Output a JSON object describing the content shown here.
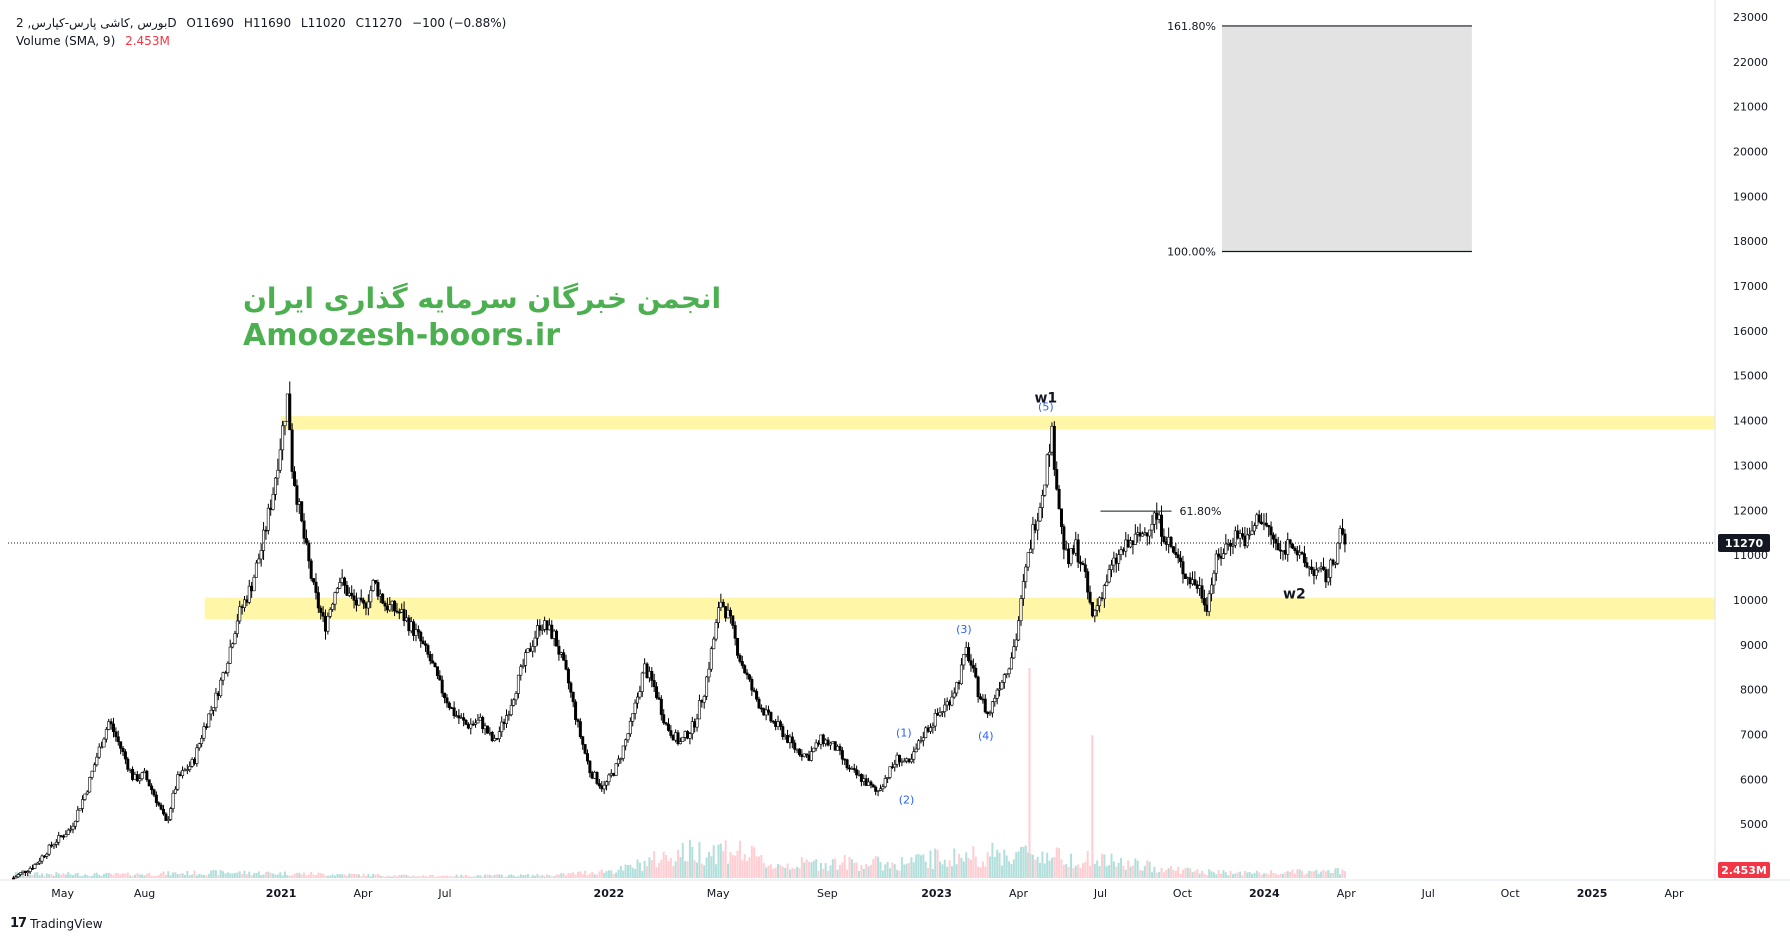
{
  "header": {
    "symbol": "بورس ,كاشى پارس-كپارس, 2D",
    "ohlc": [
      {
        "label": "O",
        "value": "11690"
      },
      {
        "label": "H",
        "value": "11690"
      },
      {
        "label": "L",
        "value": "11020"
      },
      {
        "label": "C",
        "value": "11270"
      }
    ],
    "change": "−100 (−0.88%)",
    "volume_label": "Volume (SMA, 9)",
    "volume_value": "2.453M"
  },
  "watermark": {
    "persian": "انجمن خبرگان سرمایه گذاری ایران",
    "site": "Amoozesh-boors.ir"
  },
  "brand": "TradingView",
  "colors": {
    "candle": "#000000",
    "zone": "#fff59d",
    "watermark": "#4caf50",
    "wave_label": "#2962ff",
    "vol_up": "#b2dfdb",
    "vol_down": "#ffcdd2",
    "price_badge": "#131722",
    "vol_badge": "#f23645"
  },
  "chart_data": {
    "type": "candlestick",
    "y_axis": {
      "ticks": [
        5000,
        6000,
        7000,
        8000,
        9000,
        10000,
        11000,
        12000,
        13000,
        14000,
        15000,
        16000,
        17000,
        18000,
        19000,
        20000,
        21000,
        22000,
        23000
      ],
      "range": [
        3800,
        23200
      ]
    },
    "x_axis": {
      "ticks": [
        {
          "t": 0.0,
          "label": "May"
        },
        {
          "t": 3.0,
          "label": "Aug"
        },
        {
          "t": 8.0,
          "label": "2021"
        },
        {
          "t": 11.0,
          "label": "Apr"
        },
        {
          "t": 14.0,
          "label": "Jul"
        },
        {
          "t": 20.0,
          "label": "2022"
        },
        {
          "t": 24.0,
          "label": "May"
        },
        {
          "t": 28.0,
          "label": "Sep"
        },
        {
          "t": 32.0,
          "label": "2023"
        },
        {
          "t": 35.0,
          "label": "Apr"
        },
        {
          "t": 38.0,
          "label": "Jul"
        },
        {
          "t": 41.0,
          "label": "Oct"
        },
        {
          "t": 44.0,
          "label": "2024"
        },
        {
          "t": 47.0,
          "label": "Apr"
        },
        {
          "t": 50.0,
          "label": "Jul"
        },
        {
          "t": 53.0,
          "label": "Oct"
        },
        {
          "t": 56.0,
          "label": "2025"
        },
        {
          "t": 59.0,
          "label": "Apr"
        }
      ],
      "range": [
        -2.0,
        60.5
      ]
    },
    "price_path": [
      [
        -1.8,
        3800
      ],
      [
        -1.0,
        4100
      ],
      [
        -0.3,
        4600
      ],
      [
        0.3,
        4900
      ],
      [
        0.9,
        5800
      ],
      [
        1.3,
        6600
      ],
      [
        1.7,
        7300
      ],
      [
        2.2,
        6600
      ],
      [
        2.6,
        6000
      ],
      [
        3.0,
        6100
      ],
      [
        3.4,
        5600
      ],
      [
        3.8,
        5000
      ],
      [
        4.2,
        6000
      ],
      [
        4.8,
        6400
      ],
      [
        5.2,
        7200
      ],
      [
        5.6,
        7800
      ],
      [
        6.0,
        8600
      ],
      [
        6.4,
        9600
      ],
      [
        6.9,
        10300
      ],
      [
        7.3,
        11200
      ],
      [
        7.7,
        12400
      ],
      [
        8.0,
        13600
      ],
      [
        8.25,
        14600
      ],
      [
        8.4,
        13000
      ],
      [
        8.8,
        11500
      ],
      [
        9.2,
        10200
      ],
      [
        9.6,
        9400
      ],
      [
        10.1,
        10500
      ],
      [
        10.6,
        10000
      ],
      [
        11.0,
        9800
      ],
      [
        11.4,
        10400
      ],
      [
        11.8,
        9900
      ],
      [
        12.4,
        9700
      ],
      [
        13.0,
        9200
      ],
      [
        13.5,
        8600
      ],
      [
        13.8,
        8100
      ],
      [
        14.3,
        7500
      ],
      [
        14.8,
        7200
      ],
      [
        15.3,
        7300
      ],
      [
        15.8,
        6800
      ],
      [
        16.3,
        7500
      ],
      [
        16.9,
        8600
      ],
      [
        17.5,
        9500
      ],
      [
        18.0,
        9200
      ],
      [
        18.5,
        8200
      ],
      [
        18.9,
        7100
      ],
      [
        19.3,
        6200
      ],
      [
        19.8,
        5800
      ],
      [
        20.3,
        6300
      ],
      [
        20.8,
        7200
      ],
      [
        21.3,
        8500
      ],
      [
        21.7,
        8000
      ],
      [
        22.1,
        7200
      ],
      [
        22.6,
        6800
      ],
      [
        23.1,
        7200
      ],
      [
        23.5,
        8000
      ],
      [
        23.8,
        9000
      ],
      [
        24.1,
        10000
      ],
      [
        24.4,
        9600
      ],
      [
        24.8,
        8700
      ],
      [
        25.3,
        7900
      ],
      [
        25.8,
        7400
      ],
      [
        26.3,
        7100
      ],
      [
        26.8,
        6700
      ],
      [
        27.3,
        6500
      ],
      [
        27.8,
        6900
      ],
      [
        28.3,
        6700
      ],
      [
        28.8,
        6200
      ],
      [
        29.3,
        6000
      ],
      [
        29.8,
        5700
      ],
      [
        30.2,
        6100
      ],
      [
        30.6,
        6500
      ],
      [
        31.0,
        6300
      ],
      [
        31.5,
        7000
      ],
      [
        32.0,
        7400
      ],
      [
        32.4,
        7700
      ],
      [
        32.8,
        8200
      ],
      [
        33.1,
        8900
      ],
      [
        33.5,
        8000
      ],
      [
        33.9,
        7400
      ],
      [
        34.2,
        8000
      ],
      [
        34.6,
        8500
      ],
      [
        34.9,
        9100
      ],
      [
        35.2,
        10400
      ],
      [
        35.5,
        11500
      ],
      [
        35.8,
        12200
      ],
      [
        36.0,
        12900
      ],
      [
        36.2,
        13800
      ],
      [
        36.4,
        12600
      ],
      [
        36.6,
        11400
      ],
      [
        36.8,
        10800
      ],
      [
        37.1,
        11200
      ],
      [
        37.4,
        10600
      ],
      [
        37.7,
        9600
      ],
      [
        38.0,
        10100
      ],
      [
        38.4,
        10700
      ],
      [
        38.8,
        11100
      ],
      [
        39.2,
        11300
      ],
      [
        39.6,
        11500
      ],
      [
        40.0,
        11900
      ],
      [
        40.4,
        11400
      ],
      [
        40.8,
        10900
      ],
      [
        41.2,
        10500
      ],
      [
        41.6,
        10300
      ],
      [
        41.9,
        9900
      ],
      [
        42.2,
        10800
      ],
      [
        42.6,
        11200
      ],
      [
        43.0,
        11500
      ],
      [
        43.4,
        11300
      ],
      [
        43.8,
        11900
      ],
      [
        44.2,
        11500
      ],
      [
        44.6,
        11000
      ],
      [
        45.0,
        11400
      ],
      [
        45.3,
        10900
      ],
      [
        45.7,
        10700
      ],
      [
        46.0,
        10600
      ],
      [
        46.3,
        10500
      ],
      [
        46.6,
        11000
      ],
      [
        46.8,
        11500
      ],
      [
        46.95,
        11270
      ]
    ],
    "volume_path": [
      [
        -1.8,
        0.06
      ],
      [
        2.0,
        0.05
      ],
      [
        6.0,
        0.08
      ],
      [
        9.0,
        0.06
      ],
      [
        13.0,
        0.03
      ],
      [
        18.0,
        0.04
      ],
      [
        20.5,
        0.12
      ],
      [
        22.5,
        0.35
      ],
      [
        24.5,
        0.42
      ],
      [
        26.0,
        0.18
      ],
      [
        28.5,
        0.22
      ],
      [
        30.5,
        0.2
      ],
      [
        32.0,
        0.28
      ],
      [
        34.0,
        0.33
      ],
      [
        35.5,
        0.35
      ],
      [
        36.5,
        0.3
      ],
      [
        38.0,
        0.25
      ],
      [
        40.0,
        0.15
      ],
      [
        42.0,
        0.08
      ],
      [
        44.0,
        0.07
      ],
      [
        46.95,
        0.1
      ]
    ],
    "volume_spikes": [
      {
        "t": 35.4,
        "v": 1.0
      },
      {
        "t": 37.7,
        "v": 0.68
      }
    ],
    "zones": [
      {
        "t0": 8.0,
        "t1": 60.5,
        "y0": 13800,
        "y1": 14100
      },
      {
        "t0": 5.2,
        "t1": 60.5,
        "y0": 9570,
        "y1": 10050
      }
    ],
    "fib_box": {
      "t0": 42.45,
      "t1": 51.6,
      "level_top": 22800,
      "level_bottom": 17770,
      "label_top": "161.80%",
      "label_bottom": "100.00%"
    },
    "fib_line": {
      "t0": 38.0,
      "t1": 40.6,
      "level": 11980,
      "label": "61.80%"
    },
    "last_price": {
      "value": 11270,
      "label": "11270"
    },
    "volume_badge": "2.453M",
    "labels": [
      {
        "t": 36.0,
        "y": 14400,
        "text": "w1",
        "kind": "wave"
      },
      {
        "t": 45.1,
        "y": 10030,
        "text": "w2",
        "kind": "wave"
      },
      {
        "t": 36.0,
        "y": 14220,
        "text": "(5)",
        "kind": "sub"
      },
      {
        "t": 30.8,
        "y": 6960,
        "text": "(1)",
        "kind": "sub"
      },
      {
        "t": 30.9,
        "y": 5460,
        "text": "(2)",
        "kind": "sub"
      },
      {
        "t": 33.0,
        "y": 9260,
        "text": "(3)",
        "kind": "sub"
      },
      {
        "t": 33.8,
        "y": 6890,
        "text": "(4)",
        "kind": "sub"
      }
    ]
  }
}
